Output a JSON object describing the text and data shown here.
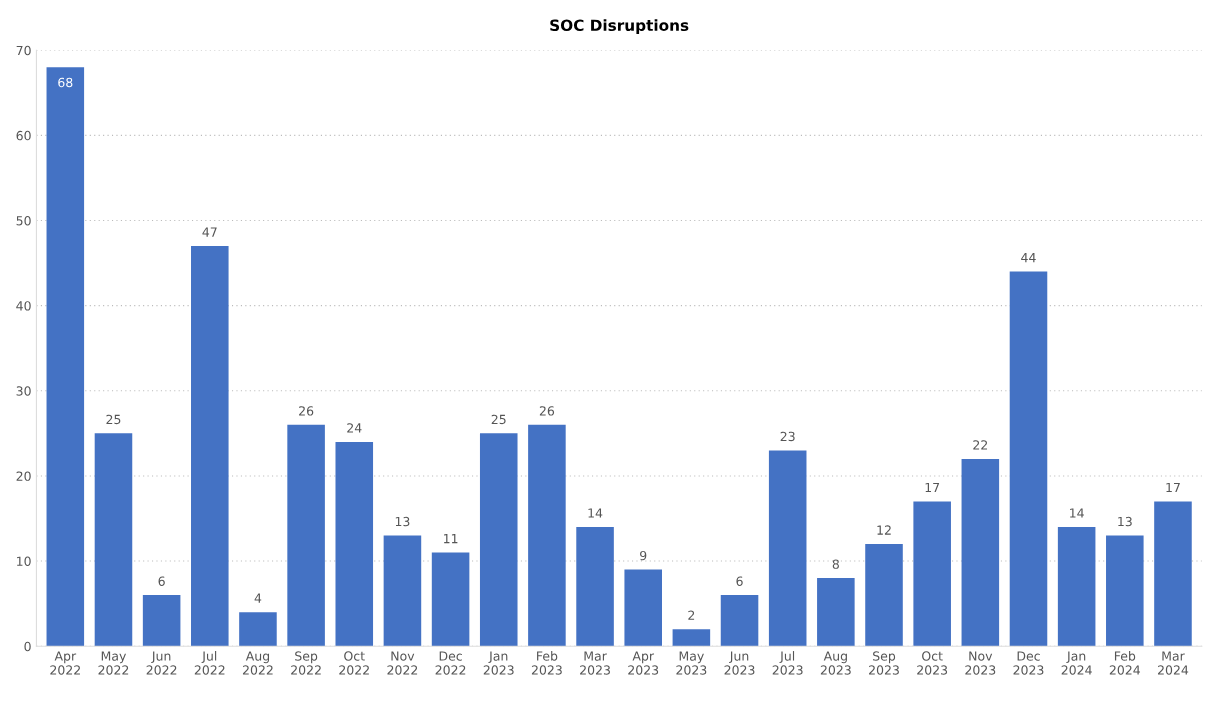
{
  "chart_data": {
    "type": "bar",
    "title": "SOC Disruptions",
    "categories": [
      "Apr\n2022",
      "May\n2022",
      "Jun\n2022",
      "Jul\n2022",
      "Aug\n2022",
      "Sep\n2022",
      "Oct\n2022",
      "Nov\n2022",
      "Dec\n2022",
      "Jan\n2023",
      "Feb\n2023",
      "Mar\n2023",
      "Apr\n2023",
      "May\n2023",
      "Jun\n2023",
      "Jul\n2023",
      "Aug\n2023",
      "Sep\n2023",
      "Oct\n2023",
      "Nov\n2023",
      "Dec\n2023",
      "Jan\n2024",
      "Feb\n2024",
      "Mar\n2024"
    ],
    "values": [
      68,
      25,
      6,
      47,
      4,
      26,
      24,
      13,
      11,
      25,
      26,
      14,
      9,
      2,
      6,
      23,
      8,
      12,
      17,
      22,
      44,
      14,
      13,
      17
    ],
    "color": "#4472c4",
    "ylim": [
      0,
      70
    ],
    "yticks": [
      0,
      10,
      20,
      30,
      40,
      50,
      60,
      70
    ],
    "grid": "y",
    "data_labels": true
  }
}
